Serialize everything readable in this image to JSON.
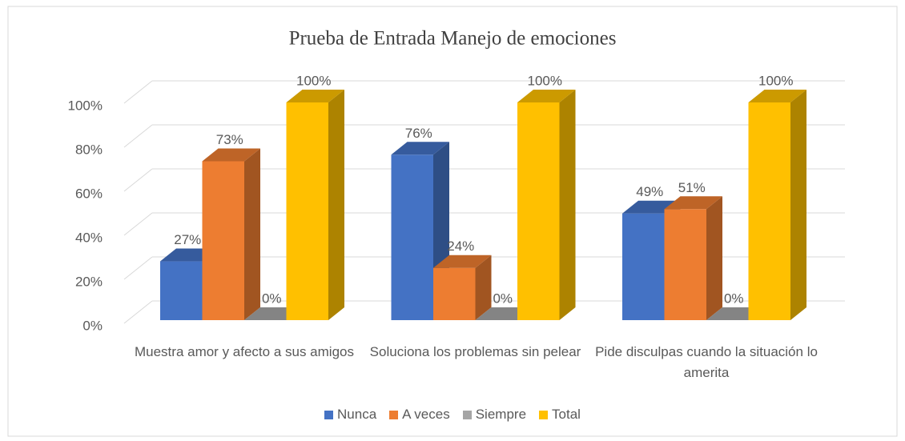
{
  "chart_data": {
    "type": "bar3d",
    "title": "Prueba de Entrada Manejo de emociones",
    "categories": [
      "Muestra amor y afecto a sus amigos",
      "Soluciona los problemas sin pelear",
      "Pide disculpas cuando la situación lo amerita"
    ],
    "series": [
      {
        "name": "Nunca",
        "color": "#4472c4",
        "values": [
          27,
          76,
          49
        ],
        "value_labels": [
          "27%",
          "76%",
          "49%"
        ]
      },
      {
        "name": "A veces",
        "color": "#ed7d31",
        "values": [
          73,
          24,
          51
        ],
        "value_labels": [
          "73%",
          "24%",
          "51%"
        ]
      },
      {
        "name": "Siempre",
        "color": "#a5a5a5",
        "values": [
          0,
          0,
          0
        ],
        "value_labels": [
          "0%",
          "0%",
          "0%"
        ]
      },
      {
        "name": "Total",
        "color": "#ffc000",
        "values": [
          100,
          100,
          100
        ],
        "value_labels": [
          "100%",
          "100%",
          "100%"
        ]
      }
    ],
    "ylim": [
      0,
      100
    ],
    "yticks": [
      {
        "value": 0,
        "label": "0%"
      },
      {
        "value": 20,
        "label": "20%"
      },
      {
        "value": 40,
        "label": "40%"
      },
      {
        "value": 60,
        "label": "60%"
      },
      {
        "value": 80,
        "label": "80%"
      },
      {
        "value": 100,
        "label": "100%"
      }
    ],
    "grid": true,
    "legend": "bottom"
  }
}
